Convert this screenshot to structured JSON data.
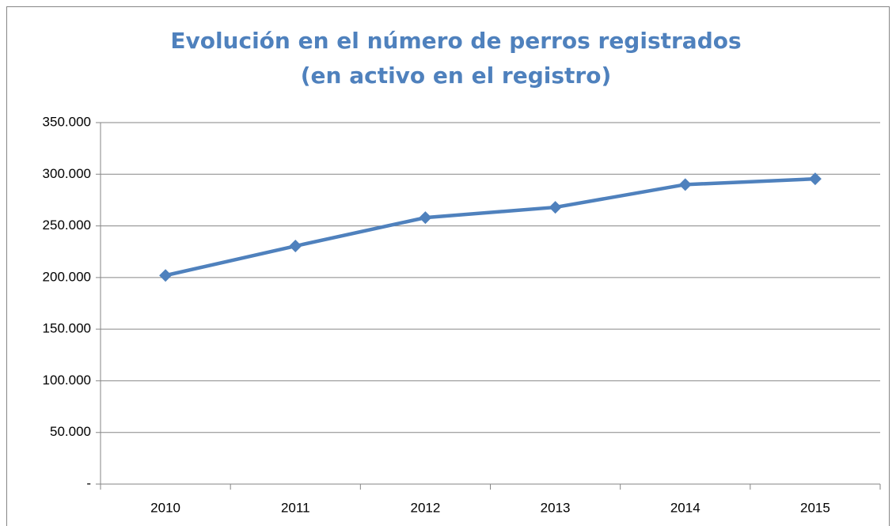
{
  "chart_data": {
    "type": "line",
    "title": "Evolución en el número de perros registrados (en activo en el registro)",
    "categories": [
      "2010",
      "2011",
      "2012",
      "2013",
      "2014",
      "2015"
    ],
    "values": [
      202000,
      230500,
      258000,
      268000,
      290000,
      295500
    ],
    "color": "#4f81bd",
    "ylim": [
      0,
      350000
    ],
    "yticks": [
      {
        "value": 0,
        "label": "-"
      },
      {
        "value": 50000,
        "label": "50.000"
      },
      {
        "value": 100000,
        "label": "100.000"
      },
      {
        "value": 150000,
        "label": "150.000"
      },
      {
        "value": 200000,
        "label": "200.000"
      },
      {
        "value": 250000,
        "label": "250.000"
      },
      {
        "value": 300000,
        "label": "300.000"
      },
      {
        "value": 350000,
        "label": "350.000"
      }
    ],
    "grid": true
  }
}
